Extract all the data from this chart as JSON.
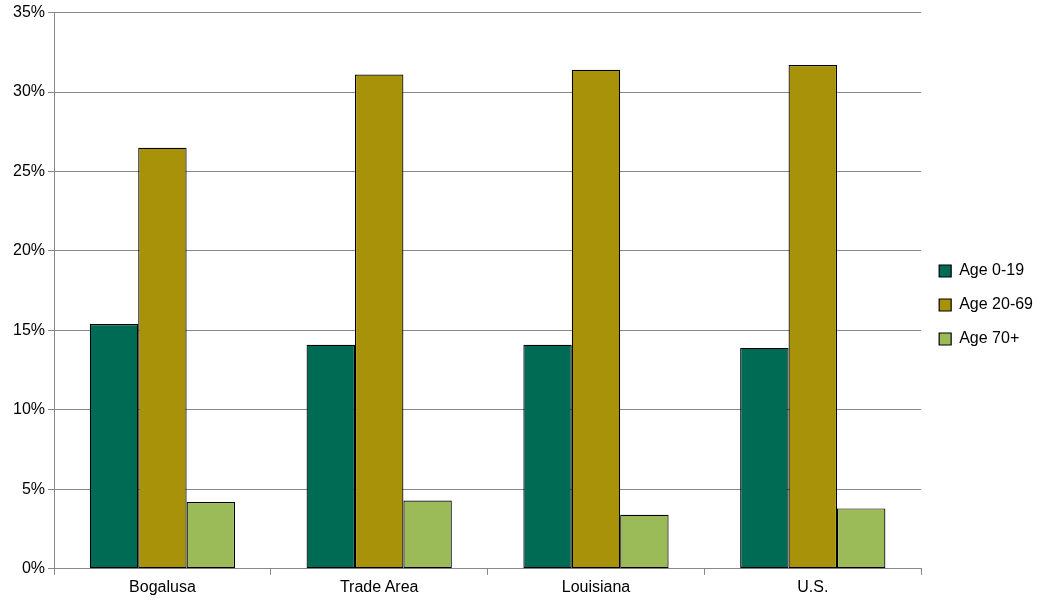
{
  "chart_data": {
    "type": "bar",
    "categories": [
      "Bogalusa",
      "Trade Area",
      "Louisiana",
      "U.S."
    ],
    "series": [
      {
        "name": "Age 0-19",
        "color": "#006b54",
        "values": [
          15.4,
          14.1,
          14.1,
          13.9
        ]
      },
      {
        "name": "Age 20-69",
        "color": "#a8920a",
        "values": [
          26.5,
          31.1,
          31.4,
          31.7
        ]
      },
      {
        "name": "Age 70+",
        "color": "#9bbb59",
        "values": [
          4.2,
          4.3,
          3.4,
          3.8
        ]
      }
    ],
    "ylim": [
      0,
      35
    ],
    "yticks": [
      {
        "value": 0,
        "label": "0%"
      },
      {
        "value": 5,
        "label": "5%"
      },
      {
        "value": 10,
        "label": "10%"
      },
      {
        "value": 15,
        "label": "15%"
      },
      {
        "value": 20,
        "label": "20%"
      },
      {
        "value": 25,
        "label": "25%"
      },
      {
        "value": 30,
        "label": "30%"
      },
      {
        "value": 35,
        "label": "35%"
      }
    ],
    "grid": "y",
    "legend": "right"
  }
}
